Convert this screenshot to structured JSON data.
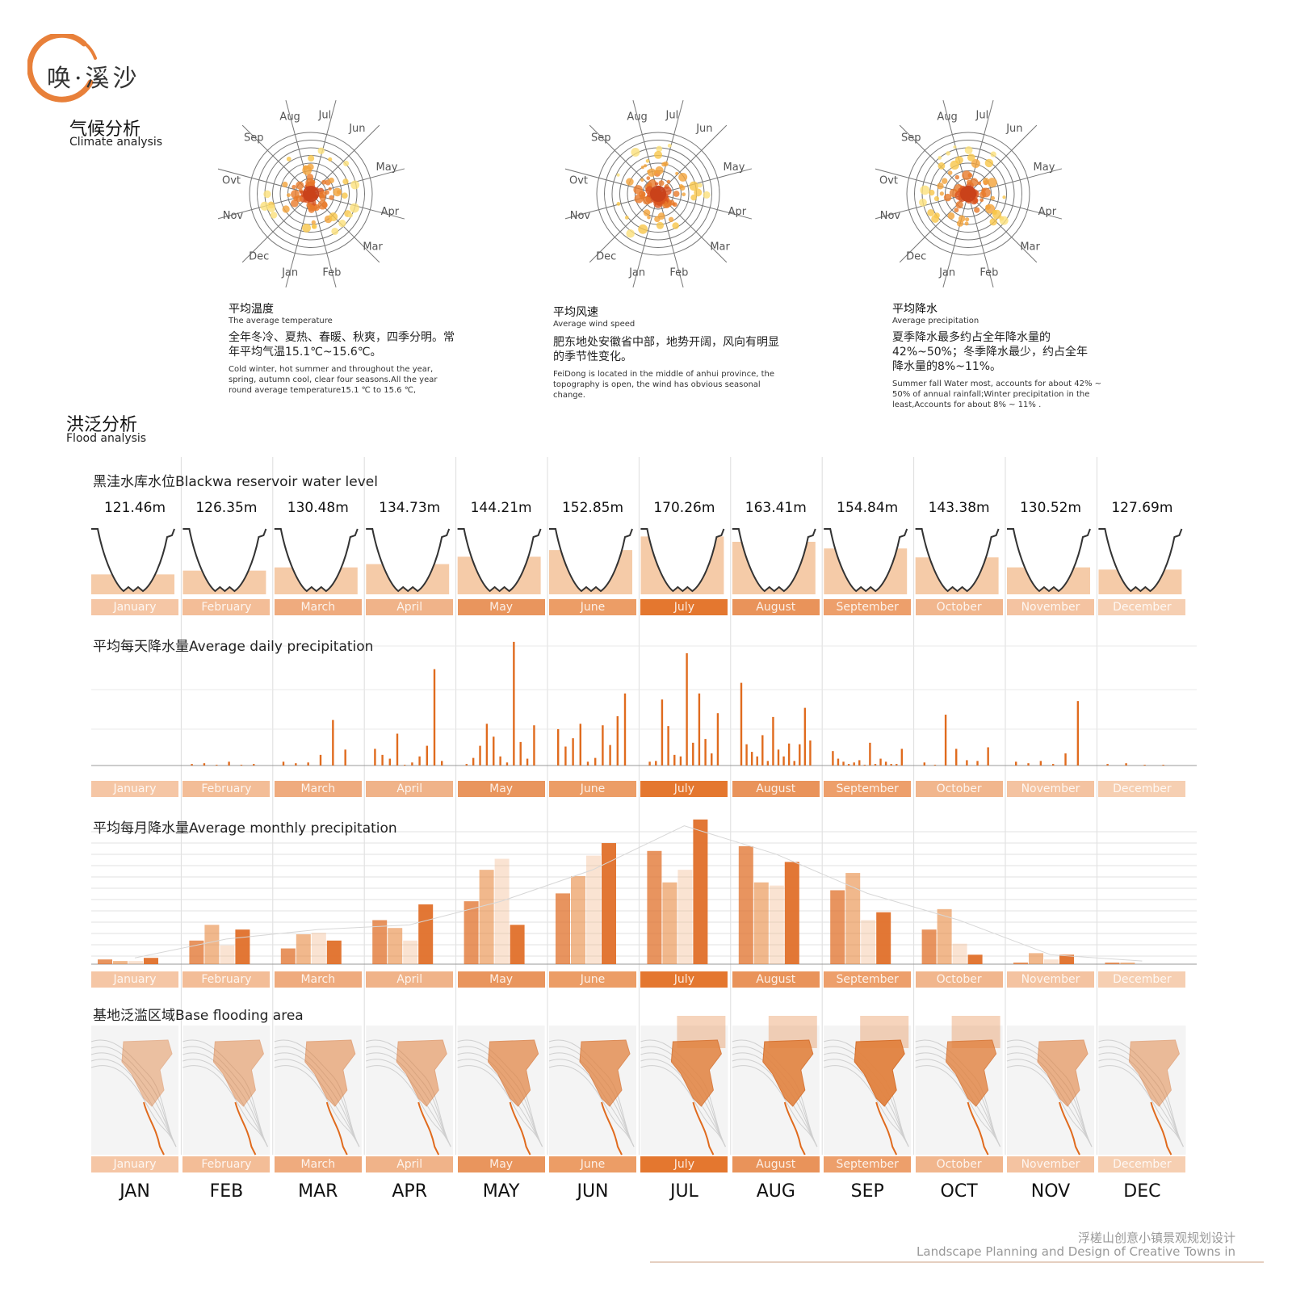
{
  "brand": {
    "text": "唤·溪沙"
  },
  "climate": {
    "title_zh": "气候分析",
    "title_en": "Climate analysis",
    "roses": [
      {
        "title_zh": "平均温度",
        "title_en": "The average temperature",
        "desc_zh": "全年冬冷、夏热、春暖、秋爽，四季分明。常年平均气温15.1℃~15.6℃。",
        "desc_en": "Cold winter, hot summer and throughout the year, spring, autumn cool, clear four seasons.All the year round average temperature15.1 ℃ to 15.6 ℃,"
      },
      {
        "title_zh": "平均风速",
        "title_en": "Average wind speed",
        "desc_zh": "肥东地处安徽省中部，地势开阔，风向有明显的季节性变化。",
        "desc_en": "FeiDong is located in the middle of anhui province, the topography is open, the wind has obvious seasonal change."
      },
      {
        "title_zh": "平均降水",
        "title_en": "Average precipitation",
        "desc_zh": "夏季降水最多约占全年降水量的42%~50%；冬季降水最少，约占全年降水量的8%~11%。",
        "desc_en": "Summer fall Water most, accounts for about 42% ~ 50% of annual rainfall;Winter precipitation in the least,Accounts for about 8% ~ 11% ."
      }
    ],
    "rose_month_labels": [
      "Jan",
      "Feb",
      "Mar",
      "Apr",
      "May",
      "Jun",
      "Jul",
      "Aug",
      "Sep",
      "Ovt",
      "Nov",
      "Dec"
    ]
  },
  "flood": {
    "title_zh": "洪泛分析",
    "title_en": "Flood analysis",
    "panels": {
      "level_title": "黑洼水库水位Blackwa reservoir water level",
      "daily_title": "平均每天降水量Average daily precipitation",
      "monthly_title": "平均每月降水量Average monthly precipitation",
      "area_title": "基地泛滥区域Base flooding area"
    },
    "months": [
      "January",
      "February",
      "March",
      "April",
      "May",
      "June",
      "July",
      "August",
      "September",
      "October",
      "November",
      "December"
    ],
    "abbr": [
      "JAN",
      "FEB",
      "MAR",
      "APR",
      "MAY",
      "JUN",
      "JUL",
      "AUG",
      "SEP",
      "OCT",
      "NOV",
      "DEC"
    ],
    "band_colors": [
      "#f5c6a5",
      "#f3bd97",
      "#efab7e",
      "#f0b389",
      "#e9955d",
      "#ec9d66",
      "#e4772f",
      "#e9935a",
      "#ed9f6b",
      "#f1b68d",
      "#f4c3a1",
      "#f6cfb2"
    ]
  },
  "chart_data": [
    {
      "type": "bar",
      "title": "黑洼水库水位Blackwa reservoir water level",
      "categories": [
        "January",
        "February",
        "March",
        "April",
        "May",
        "June",
        "July",
        "August",
        "September",
        "October",
        "November",
        "December"
      ],
      "values": [
        121.46,
        126.35,
        130.48,
        134.73,
        144.21,
        152.85,
        170.26,
        163.41,
        154.84,
        143.38,
        130.52,
        127.69
      ],
      "value_labels": [
        "121.46m",
        "126.35m",
        "130.48m",
        "134.73m",
        "144.21m",
        "152.85m",
        "170.26m",
        "163.41m",
        "154.84m",
        "143.38m",
        "130.52m",
        "127.69m"
      ],
      "fill_color": "#f5cba8"
    },
    {
      "type": "bar",
      "title": "平均每天降水量Average daily precipitation",
      "categories": [
        "January",
        "February",
        "March",
        "April",
        "May",
        "June",
        "July",
        "August",
        "September",
        "October",
        "November",
        "December"
      ],
      "series": [
        {
          "values": [
            [],
            [
              2,
              3,
              1,
              5,
              1,
              2
            ],
            [
              5,
              3,
              4,
              14,
              60,
              21
            ],
            [
              22,
              14,
              9,
              42,
              1,
              4,
              12,
              26,
              127,
              6
            ],
            [
              2,
              10,
              26,
              55,
              38,
              12,
              4,
              163,
              31,
              9,
              53
            ],
            [
              48,
              25,
              36,
              55,
              5,
              10,
              53,
              27,
              65,
              95
            ],
            [
              5,
              6,
              87,
              52,
              14,
              12,
              148,
              30,
              95,
              35,
              16,
              69
            ],
            [
              109,
              28,
              18,
              12,
              40,
              6,
              64,
              21,
              12,
              29,
              6,
              28,
              76,
              33
            ],
            [
              19,
              9,
              5,
              2,
              4,
              7,
              1,
              30,
              2,
              9,
              5,
              2,
              2,
              22
            ],
            [
              4,
              1,
              67,
              22,
              7,
              6,
              24
            ],
            [
              5,
              3,
              6,
              2,
              16,
              85
            ],
            [
              2,
              3,
              1,
              1
            ]
          ]
        }
      ]
    },
    {
      "type": "bar",
      "title": "平均每月降水量Average monthly precipitation",
      "categories": [
        "January",
        "February",
        "March",
        "April",
        "May",
        "June",
        "July",
        "August",
        "September",
        "October",
        "November",
        "December"
      ],
      "series": [
        {
          "name": "",
          "values": [
            3,
            15,
            10,
            28,
            40,
            45,
            72,
            75,
            47,
            22,
            1,
            1
          ]
        },
        {
          "name": "",
          "values": [
            2,
            25,
            19,
            23,
            60,
            56,
            52,
            52,
            58,
            35,
            7,
            1
          ]
        },
        {
          "name": "",
          "values": [
            2,
            12,
            20,
            15,
            67,
            69,
            60,
            50,
            28,
            13,
            3,
            0
          ]
        },
        {
          "name": "",
          "values": [
            4,
            22,
            15,
            38,
            25,
            77,
            92,
            65,
            33,
            6,
            6,
            0
          ]
        }
      ]
    }
  ],
  "footer": {
    "zh": "浮槎山创意小镇景观规划设计",
    "en": "Landscape Planning and Design of Creative Towns in"
  }
}
